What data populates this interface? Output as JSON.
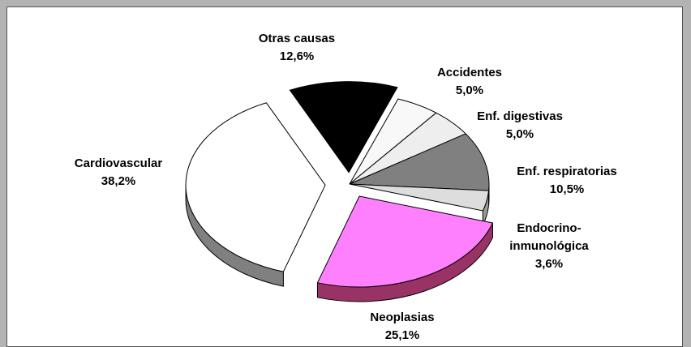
{
  "chart_data": {
    "type": "pie",
    "categories": [
      "Otras causas",
      "Accidentes",
      "Enf. digestivas",
      "Enf. respiratorias",
      "Endocrino-inmunológica",
      "Neoplasias",
      "Cardiovascular"
    ],
    "values": [
      12.6,
      5.0,
      5.0,
      10.5,
      3.6,
      25.1,
      38.2
    ],
    "value_labels": [
      "12,6%",
      "5,0%",
      "5,0%",
      "10,5%",
      "3,6%",
      "25,1%",
      "38,2%"
    ],
    "colors": [
      "#000000",
      "#f8f8f8",
      "#eeeeee",
      "#808080",
      "#dddddd",
      "#ff80ff",
      "#ffffff"
    ]
  }
}
